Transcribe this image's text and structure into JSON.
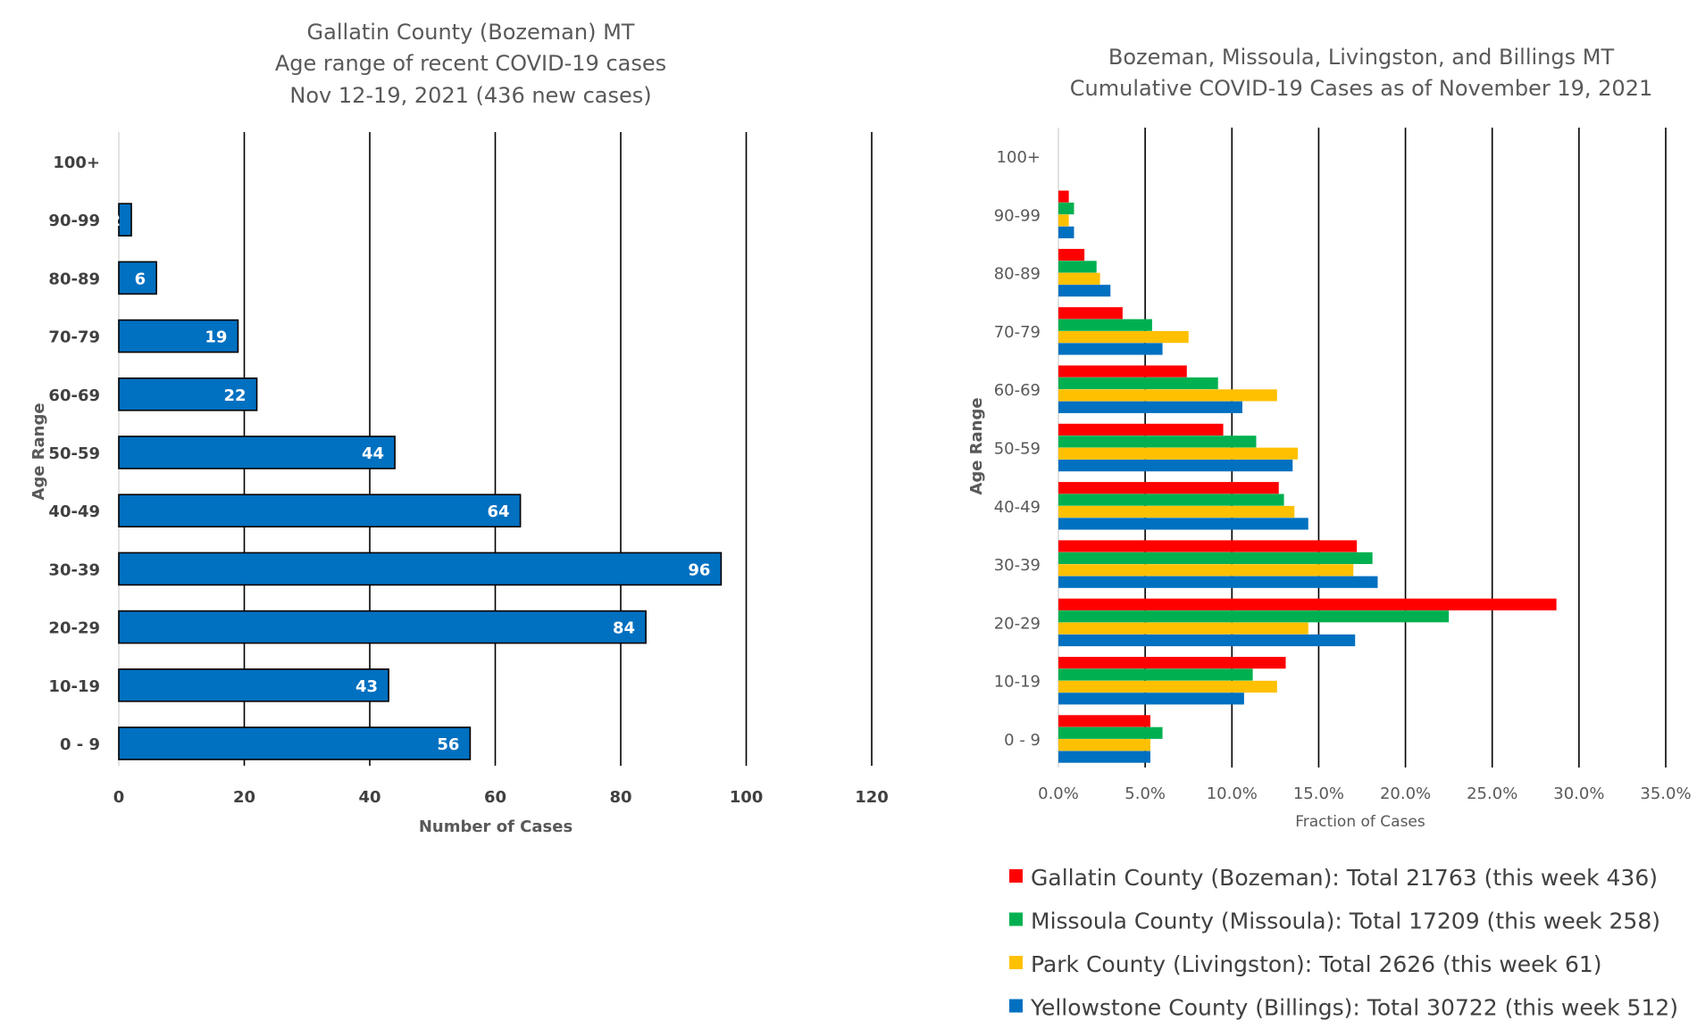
{
  "chart_data": [
    {
      "type": "bar",
      "orientation": "horizontal",
      "title": [
        "Gallatin County (Bozeman) MT",
        "Age range of recent COVID-19 cases",
        "Nov 12-19, 2021 (436 new cases)"
      ],
      "xlabel": "Number of Cases",
      "ylabel": "Age Range",
      "categories": [
        "0 - 9",
        "10-19",
        "20-29",
        "30-39",
        "40-49",
        "50-59",
        "60-69",
        "70-79",
        "80-89",
        "90-99",
        "100+"
      ],
      "values": [
        56,
        43,
        84,
        96,
        64,
        44,
        22,
        19,
        6,
        2,
        0
      ],
      "data_labels": [
        "56",
        "43",
        "84",
        "96",
        "64",
        "44",
        "22",
        "19",
        "6",
        "2",
        ""
      ],
      "xlim": [
        0,
        120
      ],
      "xticks": [
        "0",
        "20",
        "40",
        "60",
        "80",
        "100",
        "120"
      ],
      "grid": "vertical",
      "colors": {
        "bar": "#0070c0",
        "bar_edge": "#000000",
        "grid": "#000000"
      }
    },
    {
      "type": "bar",
      "orientation": "horizontal",
      "title": [
        "Bozeman, Missoula, Livingston, and Billings MT",
        "Cumulative COVID-19 Cases as of November 19, 2021"
      ],
      "xlabel": "Fraction of Cases",
      "ylabel": "Age Range",
      "categories": [
        "0 - 9",
        "10-19",
        "20-29",
        "30-39",
        "40-49",
        "50-59",
        "60-69",
        "70-79",
        "80-89",
        "90-99",
        "100+"
      ],
      "xlim": [
        0,
        0.35
      ],
      "xticks": [
        "0.0%",
        "5.0%",
        "10.0%",
        "15.0%",
        "20.0%",
        "25.0%",
        "30.0%",
        "35.0%"
      ],
      "grid": "vertical",
      "legend_position": "bottom",
      "series": [
        {
          "name": "Gallatin County (Bozeman): Total 21763 (this week 436)",
          "color": "#ff0000",
          "values": [
            0.053,
            0.131,
            0.287,
            0.172,
            0.127,
            0.095,
            0.074,
            0.037,
            0.015,
            0.006,
            0.0
          ]
        },
        {
          "name": "Missoula County (Missoula): Total 17209 (this week 258)",
          "color": "#00b050",
          "values": [
            0.06,
            0.112,
            0.225,
            0.181,
            0.13,
            0.114,
            0.092,
            0.054,
            0.022,
            0.009,
            0.0
          ]
        },
        {
          "name": "Park County (Livingston): Total 2626 (this week 61)",
          "color": "#ffc000",
          "values": [
            0.053,
            0.126,
            0.144,
            0.17,
            0.136,
            0.138,
            0.126,
            0.075,
            0.024,
            0.006,
            0.0
          ]
        },
        {
          "name": "Yellowstone County (Billings): Total 30722 (this week 512)",
          "color": "#0070c0",
          "values": [
            0.053,
            0.107,
            0.171,
            0.184,
            0.144,
            0.135,
            0.106,
            0.06,
            0.03,
            0.009,
            0.0
          ]
        }
      ]
    }
  ]
}
